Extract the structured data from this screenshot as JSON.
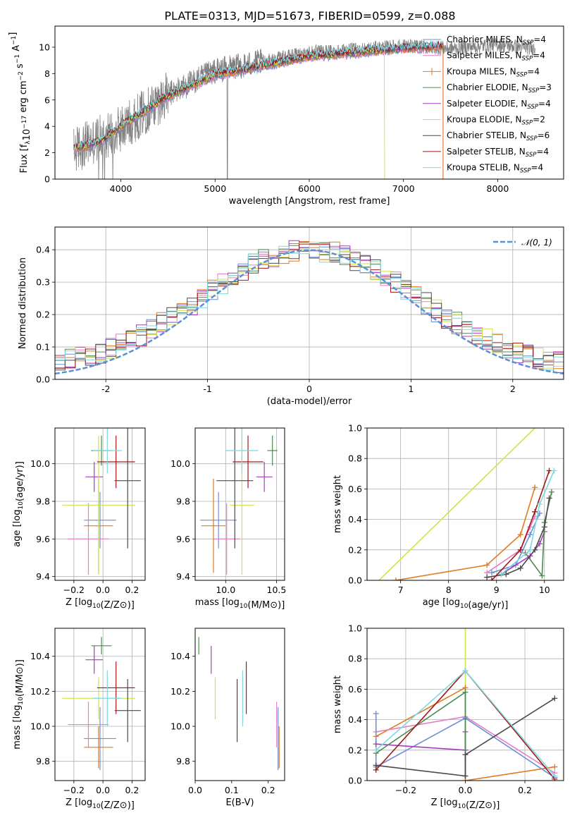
{
  "figure": {
    "title": "PLATE=0313, MJD=51673, FIBERID=0599, z=0.088",
    "colors": {
      "Chabrier MILES": "#6d8fd8",
      "Salpeter MILES": "#e77fc4",
      "Kroupa MILES": "#e07a1f",
      "Chabrier ELODIE": "#4f8a50",
      "Salpeter ELODIE": "#a53dbd",
      "Kroupa ELODIE": "#cfe34a",
      "Chabrier STELIB": "#4a4a4a",
      "Salpeter STELIB": "#a01818",
      "Kroupa STELIB": "#7fd8e0",
      "data": "#808080",
      "normal": "#5b8fd6"
    }
  },
  "chart_data": [
    {
      "id": "spectrum",
      "type": "line",
      "xlabel": "wavelength [Angstrom, rest frame]",
      "ylabel": "Flux [f_λ 10^−17 erg cm^−2 s^−1 A^−1]",
      "xlim": [
        3300,
        8700
      ],
      "ylim": [
        0,
        11.6
      ],
      "xticks": [
        4000,
        5000,
        6000,
        7000,
        8000
      ],
      "yticks": [
        0,
        2,
        4,
        6,
        8,
        10
      ],
      "grid": false,
      "legend_position": "top-right",
      "data_trend": {
        "x": [
          3500,
          4000,
          4500,
          5000,
          5500,
          6000,
          6500,
          7000,
          7500,
          8000,
          8400
        ],
        "y": [
          2.2,
          3.8,
          6.4,
          8.2,
          8.9,
          9.6,
          9.8,
          10.1,
          9.9,
          10.2,
          9.9
        ]
      },
      "model_trend": {
        "x": [
          3500,
          3800,
          4000,
          4500,
          5000,
          5500,
          6000,
          6500,
          7000,
          7420
        ],
        "y": [
          2.3,
          2.9,
          4.0,
          6.3,
          7.9,
          8.6,
          9.3,
          9.6,
          9.9,
          10.1
        ]
      },
      "series": [
        {
          "name": "Chabrier MILES, N_SSP=4",
          "label_main": "Chabrier MILES, N",
          "label_sub": "SSP",
          "label_tail": "=4"
        },
        {
          "name": "Salpeter MILES, N_SSP=4",
          "label_main": "Salpeter MILES, N",
          "label_sub": "SSP",
          "label_tail": "=4"
        },
        {
          "name": "Kroupa MILES, N_SSP=4",
          "label_main": "Kroupa MILES, N",
          "label_sub": "SSP",
          "label_tail": "=4"
        },
        {
          "name": "Chabrier ELODIE, N_SSP=3",
          "label_main": "Chabrier ELODIE, N",
          "label_sub": "SSP",
          "label_tail": "=3"
        },
        {
          "name": "Salpeter ELODIE, N_SSP=4",
          "label_main": "Salpeter ELODIE, N",
          "label_sub": "SSP",
          "label_tail": "=4"
        },
        {
          "name": "Kroupa ELODIE, N_SSP=2",
          "label_main": "Kroupa ELODIE, N",
          "label_sub": "SSP",
          "label_tail": "=2"
        },
        {
          "name": "Chabrier STELIB, N_SSP=6",
          "label_main": "Chabrier STELIB, N",
          "label_sub": "SSP",
          "label_tail": "=6"
        },
        {
          "name": "Salpeter STELIB, N_SSP=4",
          "label_main": "Salpeter STELIB, N",
          "label_sub": "SSP",
          "label_tail": "=4"
        },
        {
          "name": "Kroupa STELIB, N_SSP=4",
          "label_main": "Kroupa STELIB, N",
          "label_sub": "SSP",
          "label_tail": "=4"
        }
      ]
    },
    {
      "id": "residuals",
      "type": "line",
      "xlabel": "(data-model)/error",
      "ylabel": "Normed distribution",
      "xlim": [
        -2.5,
        2.5
      ],
      "ylim": [
        0,
        0.47
      ],
      "xticks": [
        -2,
        -1,
        0,
        1,
        2
      ],
      "yticks": [
        0.0,
        0.1,
        0.2,
        0.3,
        0.4
      ],
      "grid": true,
      "legend_position": "top-right",
      "legend": "𝒩(0, 1)",
      "bin_width": 0.1,
      "bin_start": -2.5
    },
    {
      "id": "age_vs_Z",
      "type": "scatter",
      "xlabel": "Z [log10(Z/Z⊙)]",
      "ylabel": "age [log10(age/yr)]",
      "xlim": [
        -0.33,
        0.29
      ],
      "ylim": [
        9.38,
        10.19
      ],
      "xticks": [
        -0.2,
        0.0,
        0.2
      ],
      "xtick_labels": [
        "−0.2",
        "0.0",
        "0.2"
      ],
      "yticks": [
        9.4,
        9.6,
        9.8,
        10.0
      ],
      "grid": true,
      "points": [
        {
          "model": "Chabrier MILES",
          "x": -0.02,
          "xerr": 0.11,
          "y": 9.7,
          "yerr": 0.15
        },
        {
          "model": "Salpeter MILES",
          "x": -0.1,
          "xerr": 0.14,
          "y": 9.6,
          "yerr": 0.19
        },
        {
          "model": "Kroupa MILES",
          "x": -0.03,
          "xerr": 0.1,
          "y": 9.67,
          "yerr": 0.25
        },
        {
          "model": "Chabrier ELODIE",
          "x": -0.01,
          "xerr": 0.07,
          "y": 10.07,
          "yerr": 0.08
        },
        {
          "model": "Salpeter ELODIE",
          "x": -0.06,
          "xerr": 0.06,
          "y": 9.93,
          "yerr": 0.08
        },
        {
          "model": "Kroupa ELODIE",
          "x": -0.03,
          "xerr": 0.25,
          "y": 9.78,
          "yerr": 0.37
        },
        {
          "model": "Chabrier STELIB",
          "x": 0.17,
          "xerr": 0.09,
          "y": 9.91,
          "yerr": 0.36
        },
        {
          "model": "Salpeter STELIB",
          "x": 0.09,
          "xerr": 0.13,
          "y": 10.01,
          "yerr": 0.14
        },
        {
          "model": "Kroupa STELIB",
          "x": 0.03,
          "xerr": 0.1,
          "y": 10.07,
          "yerr": 0.12
        }
      ]
    },
    {
      "id": "age_vs_mass",
      "type": "scatter",
      "xlabel": "mass [log10(M/M⊙)]",
      "ylabel": "",
      "xlim": [
        9.7,
        10.58
      ],
      "ylim": [
        9.38,
        10.19
      ],
      "xticks": [
        10.0,
        10.5
      ],
      "yticks": [
        9.4,
        9.6,
        9.8,
        10.0
      ],
      "grid": true,
      "points": [
        {
          "model": "Chabrier MILES",
          "x": 9.93,
          "xerr": 0.18,
          "y": 9.7,
          "yerr": 0.15
        },
        {
          "model": "Salpeter MILES",
          "x": 10.01,
          "xerr": 0.13,
          "y": 9.6,
          "yerr": 0.19
        },
        {
          "model": "Kroupa MILES",
          "x": 9.88,
          "xerr": 0.12,
          "y": 9.67,
          "yerr": 0.25
        },
        {
          "model": "Chabrier ELODIE",
          "x": 10.46,
          "xerr": 0.05,
          "y": 10.07,
          "yerr": 0.08
        },
        {
          "model": "Salpeter ELODIE",
          "x": 10.38,
          "xerr": 0.08,
          "y": 9.93,
          "yerr": 0.08
        },
        {
          "model": "Kroupa ELODIE",
          "x": 10.16,
          "xerr": 0.12,
          "y": 9.78,
          "yerr": 0.37
        },
        {
          "model": "Chabrier STELIB",
          "x": 10.09,
          "xerr": 0.18,
          "y": 9.91,
          "yerr": 0.36
        },
        {
          "model": "Salpeter STELIB",
          "x": 10.22,
          "xerr": 0.15,
          "y": 10.01,
          "yerr": 0.14
        },
        {
          "model": "Kroupa STELIB",
          "x": 10.16,
          "xerr": 0.16,
          "y": 10.07,
          "yerr": 0.12
        }
      ]
    },
    {
      "id": "massweight_vs_age",
      "type": "line",
      "xlabel": "age  [log10(age/yr)]",
      "ylabel": "mass weight",
      "xlim": [
        6.3,
        10.4
      ],
      "ylim": [
        0,
        1
      ],
      "xticks": [
        7,
        8,
        9,
        10
      ],
      "yticks": [
        0.0,
        0.2,
        0.4,
        0.6,
        0.8,
        1.0
      ],
      "grid": true,
      "series": [
        {
          "model": "Kroupa ELODIE",
          "x": [
            6.55,
            9.8
          ],
          "y": [
            0.0,
            1.0
          ]
        },
        {
          "model": "Kroupa MILES",
          "x": [
            6.9,
            8.8,
            9.5,
            9.8
          ],
          "y": [
            0.0,
            0.1,
            0.3,
            0.61
          ]
        },
        {
          "model": "Salpeter MILES",
          "x": [
            8.8,
            9.5,
            9.7,
            9.8
          ],
          "y": [
            0.05,
            0.2,
            0.35,
            0.42
          ]
        },
        {
          "model": "Chabrier MILES",
          "x": [
            8.9,
            9.4,
            9.7,
            9.9
          ],
          "y": [
            0.05,
            0.1,
            0.3,
            0.44
          ]
        },
        {
          "model": "Salpeter ELODIE",
          "x": [
            9.1,
            9.7,
            9.9,
            10.0
          ],
          "y": [
            0.04,
            0.16,
            0.24,
            0.32
          ]
        },
        {
          "model": "Chabrier ELODIE",
          "x": [
            9.6,
            9.95,
            10.0,
            10.15
          ],
          "y": [
            0.18,
            0.03,
            0.38,
            0.58
          ]
        },
        {
          "model": "Chabrier STELIB",
          "x": [
            8.8,
            9.2,
            9.5,
            9.8,
            10.0,
            10.1
          ],
          "y": [
            0.02,
            0.04,
            0.08,
            0.2,
            0.35,
            0.54
          ]
        },
        {
          "model": "Salpeter STELIB",
          "x": [
            8.9,
            9.5,
            9.8,
            10.1
          ],
          "y": [
            0.0,
            0.2,
            0.45,
            0.72
          ]
        },
        {
          "model": "Kroupa STELIB",
          "x": [
            9.1,
            9.7,
            9.9,
            10.2
          ],
          "y": [
            0.04,
            0.2,
            0.5,
            0.72
          ]
        }
      ]
    },
    {
      "id": "mass_vs_Z",
      "type": "scatter",
      "xlabel": "Z [log10(Z/Z⊙)]",
      "ylabel": "mass [log10(M/M⊙)]",
      "xlim": [
        -0.33,
        0.29
      ],
      "ylim": [
        9.69,
        10.56
      ],
      "xticks": [
        -0.2,
        0.0,
        0.2
      ],
      "xtick_labels": [
        "−0.2",
        "0.0",
        "0.2"
      ],
      "yticks": [
        9.8,
        10.0,
        10.2,
        10.4
      ],
      "grid": true,
      "points": [
        {
          "model": "Chabrier MILES",
          "x": -0.02,
          "xerr": 0.11,
          "y": 9.93,
          "yerr": 0.18
        },
        {
          "model": "Salpeter MILES",
          "x": -0.1,
          "xerr": 0.14,
          "y": 10.01,
          "yerr": 0.13
        },
        {
          "model": "Kroupa MILES",
          "x": -0.03,
          "xerr": 0.1,
          "y": 9.88,
          "yerr": 0.12
        },
        {
          "model": "Chabrier ELODIE",
          "x": -0.01,
          "xerr": 0.07,
          "y": 10.46,
          "yerr": 0.05
        },
        {
          "model": "Salpeter ELODIE",
          "x": -0.06,
          "xerr": 0.06,
          "y": 10.38,
          "yerr": 0.08
        },
        {
          "model": "Kroupa ELODIE",
          "x": -0.03,
          "xerr": 0.25,
          "y": 10.16,
          "yerr": 0.12
        },
        {
          "model": "Chabrier STELIB",
          "x": 0.17,
          "xerr": 0.09,
          "y": 10.09,
          "yerr": 0.18
        },
        {
          "model": "Salpeter STELIB",
          "x": 0.09,
          "xerr": 0.13,
          "y": 10.22,
          "yerr": 0.15
        },
        {
          "model": "Kroupa STELIB",
          "x": 0.03,
          "xerr": 0.1,
          "y": 10.16,
          "yerr": 0.16
        }
      ]
    },
    {
      "id": "mass_vs_ebv",
      "type": "scatter",
      "xlabel": "E(B-V)",
      "ylabel": "",
      "xlim": [
        0,
        0.245
      ],
      "ylim": [
        9.69,
        10.56
      ],
      "xticks": [
        0.0,
        0.1,
        0.2
      ],
      "yticks": [
        9.8,
        10.0,
        10.2,
        10.4
      ],
      "grid": false,
      "points": [
        {
          "model": "Chabrier MILES",
          "x": 0.227,
          "xerr": 0.0,
          "y": 9.93,
          "yerr": 0.18
        },
        {
          "model": "Salpeter MILES",
          "x": 0.223,
          "xerr": 0.0,
          "y": 10.01,
          "yerr": 0.13
        },
        {
          "model": "Kroupa MILES",
          "x": 0.23,
          "xerr": 0.0,
          "y": 9.88,
          "yerr": 0.12
        },
        {
          "model": "Chabrier ELODIE",
          "x": 0.01,
          "xerr": 0.0,
          "y": 10.46,
          "yerr": 0.05
        },
        {
          "model": "Salpeter ELODIE",
          "x": 0.044,
          "xerr": 0.0,
          "y": 10.38,
          "yerr": 0.08
        },
        {
          "model": "Kroupa ELODIE",
          "x": 0.055,
          "xerr": 0.0,
          "y": 10.16,
          "yerr": 0.12
        },
        {
          "model": "Chabrier STELIB",
          "x": 0.115,
          "xerr": 0.0,
          "y": 10.09,
          "yerr": 0.18
        },
        {
          "model": "Salpeter STELIB",
          "x": 0.14,
          "xerr": 0.0,
          "y": 10.22,
          "yerr": 0.15
        },
        {
          "model": "Kroupa STELIB",
          "x": 0.13,
          "xerr": 0.0,
          "y": 10.16,
          "yerr": 0.16
        }
      ]
    },
    {
      "id": "massweight_vs_Z",
      "type": "line",
      "xlabel": "Z [log10(Z/Z⊙)]",
      "ylabel": "mass weight",
      "xlim": [
        -0.33,
        0.33
      ],
      "ylim": [
        0,
        1
      ],
      "xticks": [
        -0.2,
        0.0,
        0.2
      ],
      "xtick_labels": [
        "−0.2",
        "0.0",
        "0.2"
      ],
      "yticks": [
        0.0,
        0.2,
        0.4,
        0.6,
        0.8,
        1.0
      ],
      "grid": true,
      "series": [
        {
          "model": "Kroupa ELODIE",
          "x": [
            0.0,
            0.0
          ],
          "y": [
            0.0,
            1.0
          ]
        },
        {
          "model": "Kroupa MILES",
          "x": [
            -0.3,
            0.0,
            0.0,
            0.3
          ],
          "y": [
            0.29,
            0.61,
            0.0,
            0.09
          ]
        },
        {
          "model": "Salpeter MILES",
          "x": [
            -0.3,
            0.0,
            0.3
          ],
          "y": [
            0.32,
            0.42,
            0.05
          ]
        },
        {
          "model": "Chabrier MILES",
          "x": [
            -0.3,
            -0.3,
            0.0,
            0.3
          ],
          "y": [
            0.44,
            0.09,
            0.41,
            0.02
          ]
        },
        {
          "model": "Salpeter ELODIE",
          "x": [
            -0.3,
            0.0,
            0.0
          ],
          "y": [
            0.24,
            0.2,
            0.32
          ]
        },
        {
          "model": "Chabrier ELODIE",
          "x": [
            -0.3,
            0.0,
            0.0
          ],
          "y": [
            0.18,
            0.58,
            0.03
          ]
        },
        {
          "model": "Chabrier STELIB",
          "x": [
            -0.3,
            0.0,
            0.0,
            0.3
          ],
          "y": [
            0.1,
            0.03,
            0.17,
            0.54
          ]
        },
        {
          "model": "Salpeter STELIB",
          "x": [
            -0.3,
            0.0,
            0.3
          ],
          "y": [
            0.07,
            0.72,
            0.01
          ]
        },
        {
          "model": "Kroupa STELIB",
          "x": [
            -0.3,
            0.0,
            0.3
          ],
          "y": [
            0.2,
            0.72,
            0.03
          ]
        }
      ]
    }
  ]
}
